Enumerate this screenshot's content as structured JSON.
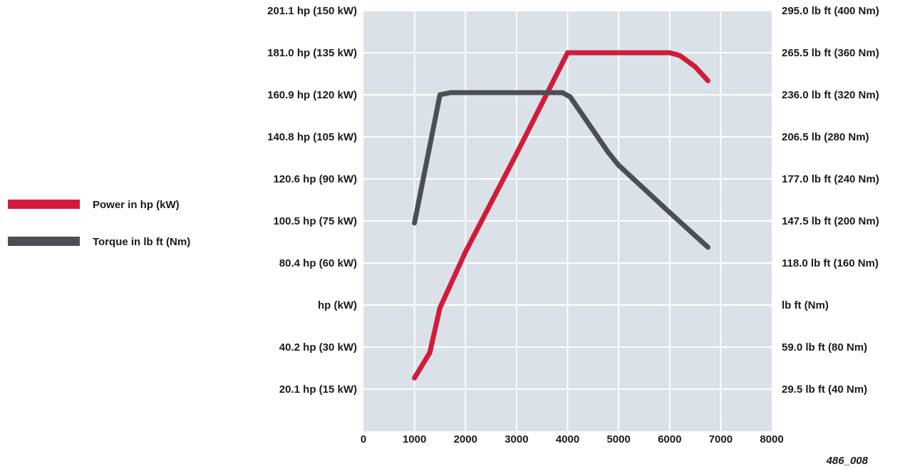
{
  "figure_id": "486_008",
  "chart_data": {
    "type": "line",
    "title": "",
    "xlabel": "",
    "x_ticks": [
      "0",
      "1000",
      "2000",
      "3000",
      "4000",
      "5000",
      "6000",
      "7000",
      "8000"
    ],
    "xlim": [
      0,
      8000
    ],
    "grid": true,
    "plot_background": "#dbe1e8",
    "legend_placement": "left",
    "left_axis": {
      "unit_label": "hp (kW)",
      "ylim_kw": [
        0,
        150
      ],
      "ticks": [
        {
          "value": 150,
          "label": "201.1 hp (150 kW)"
        },
        {
          "value": 135,
          "label": "181.0 hp (135 kW)"
        },
        {
          "value": 120,
          "label": "160.9 hp (120 kW)"
        },
        {
          "value": 105,
          "label": "140.8 hp (105 kW)"
        },
        {
          "value": 90,
          "label": "120.6 hp (90 kW)"
        },
        {
          "value": 75,
          "label": "100.5 hp (75 kW)"
        },
        {
          "value": 60,
          "label": "80.4 hp (60 kW)"
        },
        {
          "value": 45,
          "label": "hp (kW)"
        },
        {
          "value": 30,
          "label": "40.2 hp (30 kW)"
        },
        {
          "value": 15,
          "label": "20.1 hp (15 kW)"
        }
      ]
    },
    "right_axis": {
      "unit_label": "lb ft (Nm)",
      "ylim_nm": [
        0,
        400
      ],
      "ticks": [
        {
          "value": 400,
          "label": "295.0 lb ft (400 Nm)"
        },
        {
          "value": 360,
          "label": "265.5 lb ft (360 Nm)"
        },
        {
          "value": 320,
          "label": "236.0 lb ft (320 Nm)"
        },
        {
          "value": 280,
          "label": "206.5 lb (280 Nm)"
        },
        {
          "value": 240,
          "label": "177.0 lb ft (240 Nm)"
        },
        {
          "value": 200,
          "label": "147.5 lb ft (200 Nm)"
        },
        {
          "value": 160,
          "label": "118.0 lb ft (160 Nm)"
        },
        {
          "value": 120,
          "label": "lb ft (Nm)"
        },
        {
          "value": 80,
          "label": "59.0 lb ft (80 Nm)"
        },
        {
          "value": 40,
          "label": "29.5 lb ft (40 Nm)"
        }
      ]
    },
    "series": [
      {
        "name": "Power in hp (kW)",
        "axis": "left",
        "color": "#d01c3a",
        "points": [
          [
            1000,
            19
          ],
          [
            1300,
            28
          ],
          [
            1500,
            44
          ],
          [
            2000,
            64
          ],
          [
            3000,
            99
          ],
          [
            4000,
            135
          ],
          [
            5000,
            135
          ],
          [
            6000,
            135
          ],
          [
            6200,
            134
          ],
          [
            6500,
            130
          ],
          [
            6750,
            125
          ]
        ]
      },
      {
        "name": "Torque in lb ft (Nm)",
        "axis": "right",
        "color": "#4b4e53",
        "points": [
          [
            1000,
            198
          ],
          [
            1500,
            320
          ],
          [
            1700,
            322
          ],
          [
            2000,
            322
          ],
          [
            3000,
            322
          ],
          [
            3900,
            322
          ],
          [
            4050,
            318
          ],
          [
            4800,
            265
          ],
          [
            5000,
            253
          ],
          [
            6000,
            208
          ],
          [
            6750,
            175
          ]
        ]
      }
    ]
  }
}
